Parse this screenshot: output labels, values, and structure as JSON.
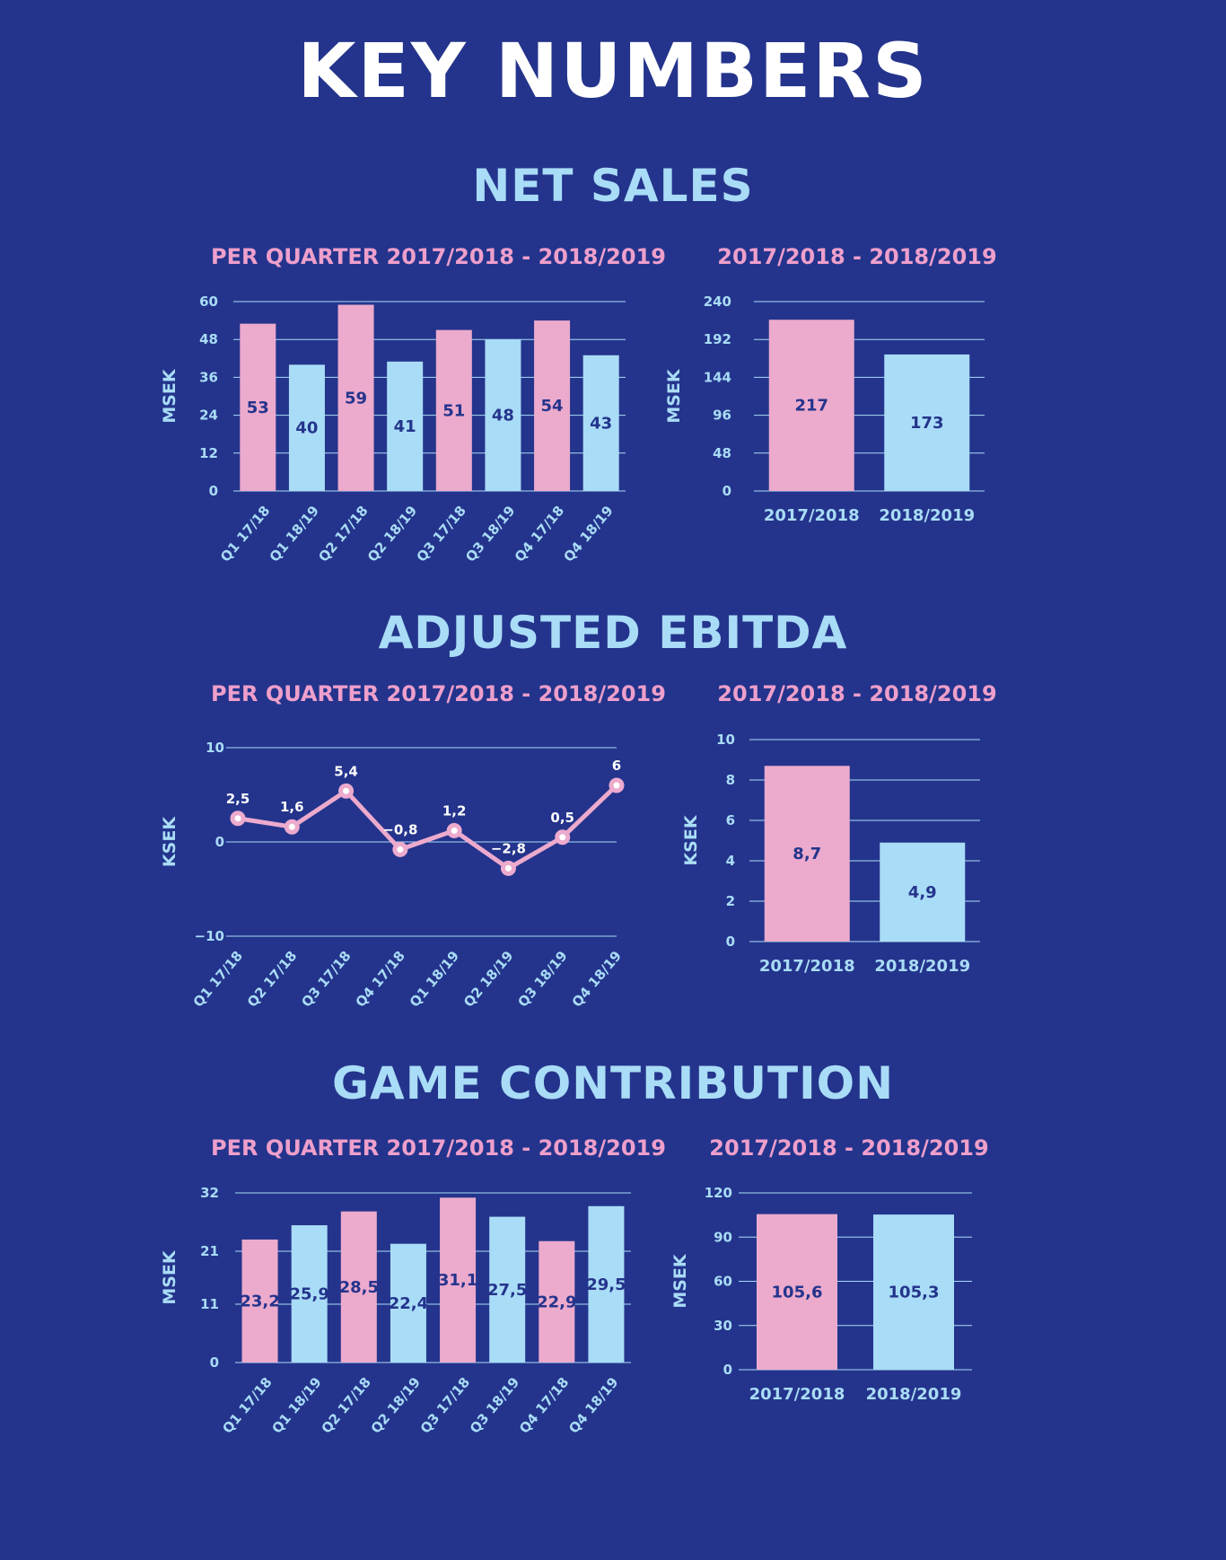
{
  "page": {
    "title": "KEY NUMBERS"
  },
  "colors": {
    "background": "#24348c",
    "pink": "#ecaacd",
    "blue": "#a9dcf6",
    "heading": "#a9dcf6",
    "subheading": "#ee9fcb"
  },
  "sections": [
    {
      "title": "NET SALES"
    },
    {
      "title": "ADJUSTED EBITDA"
    },
    {
      "title": "GAME CONTRIBUTION"
    }
  ],
  "chart_data": [
    {
      "id": "net-sales-quarter",
      "type": "bar",
      "subtitle": "PER QUARTER 2017/2018 - 2018/2019",
      "ylabel": "MSEK",
      "categories": [
        "Q1 17/18",
        "Q1 18/19",
        "Q2 17/18",
        "Q2 18/19",
        "Q3 17/18",
        "Q3 18/19",
        "Q4 17/18",
        "Q4 18/19"
      ],
      "values": [
        53,
        40,
        59,
        41,
        51,
        48,
        54,
        43
      ],
      "value_labels": [
        "53",
        "40",
        "59",
        "41",
        "51",
        "48",
        "54",
        "43"
      ],
      "bar_colors": [
        "pink",
        "blue",
        "pink",
        "blue",
        "pink",
        "blue",
        "pink",
        "blue"
      ],
      "ylim": [
        0,
        60
      ],
      "yticks": [
        0,
        12,
        24,
        36,
        48,
        60
      ],
      "ytick_labels": [
        "0",
        "12",
        "24",
        "36",
        "48",
        "60"
      ],
      "grid": true
    },
    {
      "id": "net-sales-year",
      "type": "bar",
      "subtitle": "2017/2018 - 2018/2019",
      "ylabel": "MSEK",
      "categories": [
        "2017/2018",
        "2018/2019"
      ],
      "values": [
        217,
        173
      ],
      "value_labels": [
        "217",
        "173"
      ],
      "bar_colors": [
        "pink",
        "blue"
      ],
      "ylim": [
        0,
        240
      ],
      "yticks": [
        0,
        48,
        96,
        144,
        192,
        240
      ],
      "ytick_labels": [
        "0",
        "48",
        "96",
        "144",
        "192",
        "240"
      ],
      "grid": true
    },
    {
      "id": "ebitda-quarter",
      "type": "line",
      "subtitle": "PER QUARTER 2017/2018 - 2018/2019",
      "ylabel": "KSEK",
      "categories": [
        "Q1 17/18",
        "Q2 17/18",
        "Q3 17/18",
        "Q4 17/18",
        "Q1 18/19",
        "Q2 18/19",
        "Q3 18/19",
        "Q4 18/19"
      ],
      "values": [
        2.5,
        1.6,
        5.4,
        -0.8,
        1.2,
        -2.8,
        0.5,
        6
      ],
      "value_labels": [
        "2,5",
        "1,6",
        "5,4",
        "−0,8",
        "1,2",
        "−2,8",
        "0,5",
        "6"
      ],
      "ylim": [
        -10,
        10
      ],
      "yticks": [
        -10,
        0,
        10
      ],
      "ytick_labels": [
        "−10",
        "0",
        "10"
      ],
      "grid": true
    },
    {
      "id": "ebitda-year",
      "type": "bar",
      "subtitle": "2017/2018 - 2018/2019",
      "ylabel": "KSEK",
      "categories": [
        "2017/2018",
        "2018/2019"
      ],
      "values": [
        8.7,
        4.9
      ],
      "value_labels": [
        "8,7",
        "4,9"
      ],
      "bar_colors": [
        "pink",
        "blue"
      ],
      "ylim": [
        0,
        10
      ],
      "yticks": [
        0,
        2,
        4,
        6,
        8,
        10
      ],
      "ytick_labels": [
        "0",
        "2",
        "4",
        "6",
        "8",
        "10"
      ],
      "grid": true
    },
    {
      "id": "game-quarter",
      "type": "bar",
      "subtitle": "PER QUARTER 2017/2018 - 2018/2019",
      "ylabel": "MSEK",
      "categories": [
        "Q1 17/18",
        "Q1 18/19",
        "Q2 17/18",
        "Q2 18/19",
        "Q3 17/18",
        "Q3 18/19",
        "Q4 17/18",
        "Q4 18/19"
      ],
      "values": [
        23.2,
        25.9,
        28.5,
        22.4,
        31.1,
        27.5,
        22.9,
        29.5
      ],
      "value_labels": [
        "23,2",
        "25,9",
        "28,5",
        "22,4",
        "31,1",
        "27,5",
        "22,9",
        "29,5"
      ],
      "bar_colors": [
        "pink",
        "blue",
        "pink",
        "blue",
        "pink",
        "blue",
        "pink",
        "blue"
      ],
      "ylim": [
        0,
        32
      ],
      "yticks": [
        0,
        11,
        21,
        32
      ],
      "ytick_labels": [
        "0",
        "11",
        "21",
        "32"
      ],
      "grid": true
    },
    {
      "id": "game-year",
      "type": "bar",
      "subtitle": "2017/2018 - 2018/2019",
      "ylabel": "MSEK",
      "categories": [
        "2017/2018",
        "2018/2019"
      ],
      "values": [
        105.6,
        105.3
      ],
      "value_labels": [
        "105,6",
        "105,3"
      ],
      "bar_colors": [
        "pink",
        "blue"
      ],
      "ylim": [
        0,
        120
      ],
      "yticks": [
        0,
        30,
        60,
        90,
        120
      ],
      "ytick_labels": [
        "0",
        "30",
        "60",
        "90",
        "120"
      ],
      "grid": true
    }
  ]
}
